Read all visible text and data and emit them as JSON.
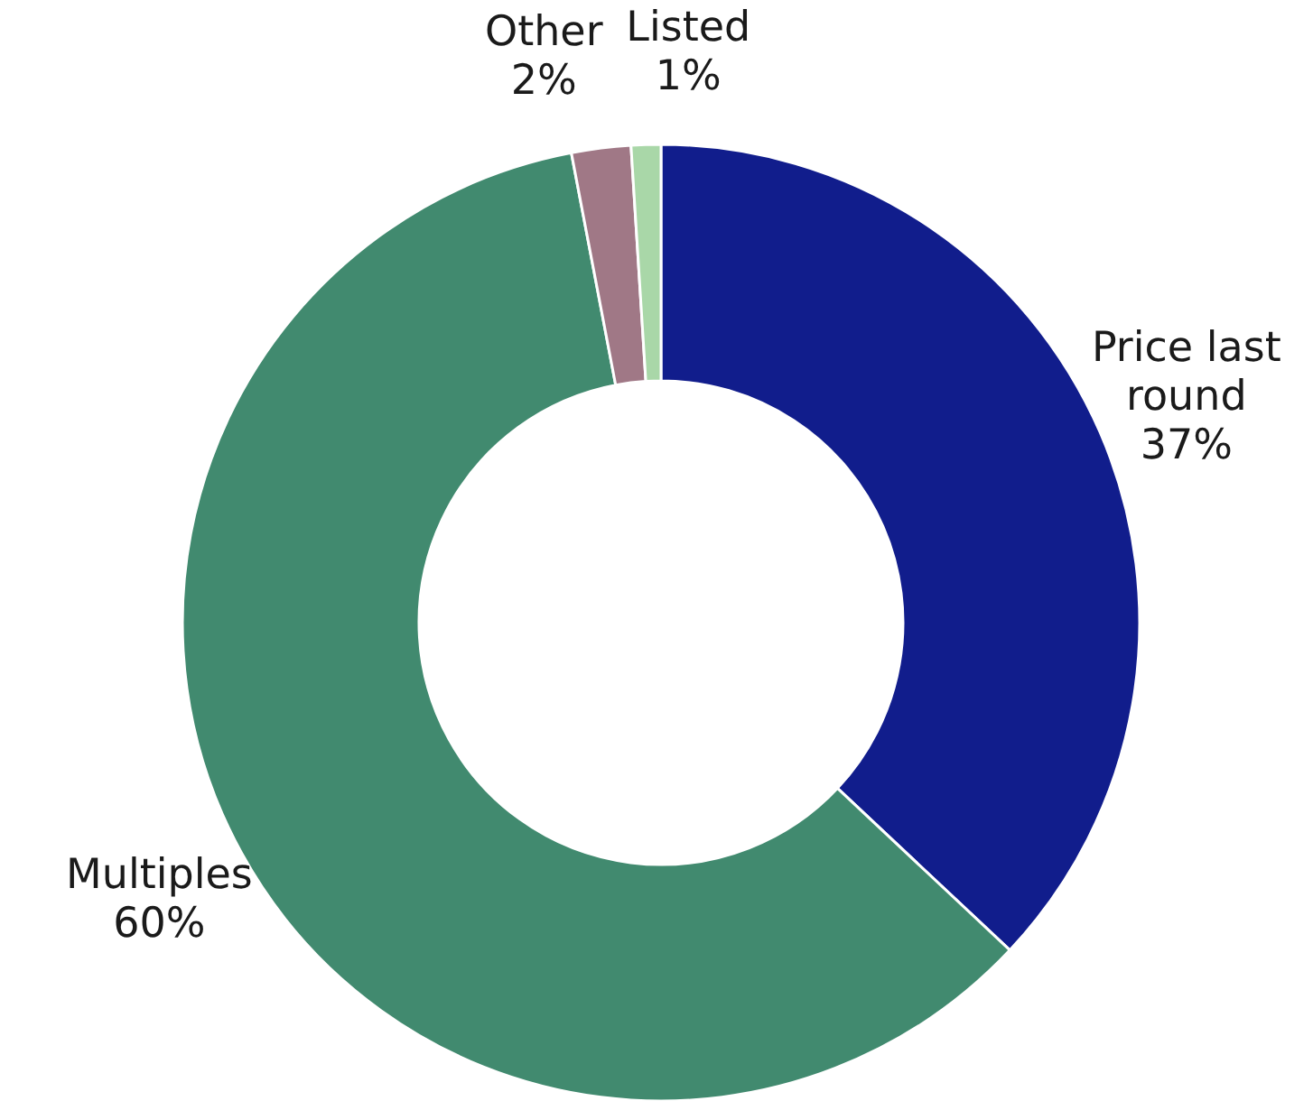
{
  "chart_data": {
    "type": "donut",
    "categories": [
      "Price last round",
      "Multiples",
      "Other",
      "Listed"
    ],
    "values": [
      37,
      60,
      2,
      1
    ],
    "colors": [
      "#111d8c",
      "#418a6f",
      "#a07886",
      "#a9d7a8"
    ],
    "value_labels": [
      "37%",
      "60%",
      "2%",
      "1%"
    ]
  }
}
